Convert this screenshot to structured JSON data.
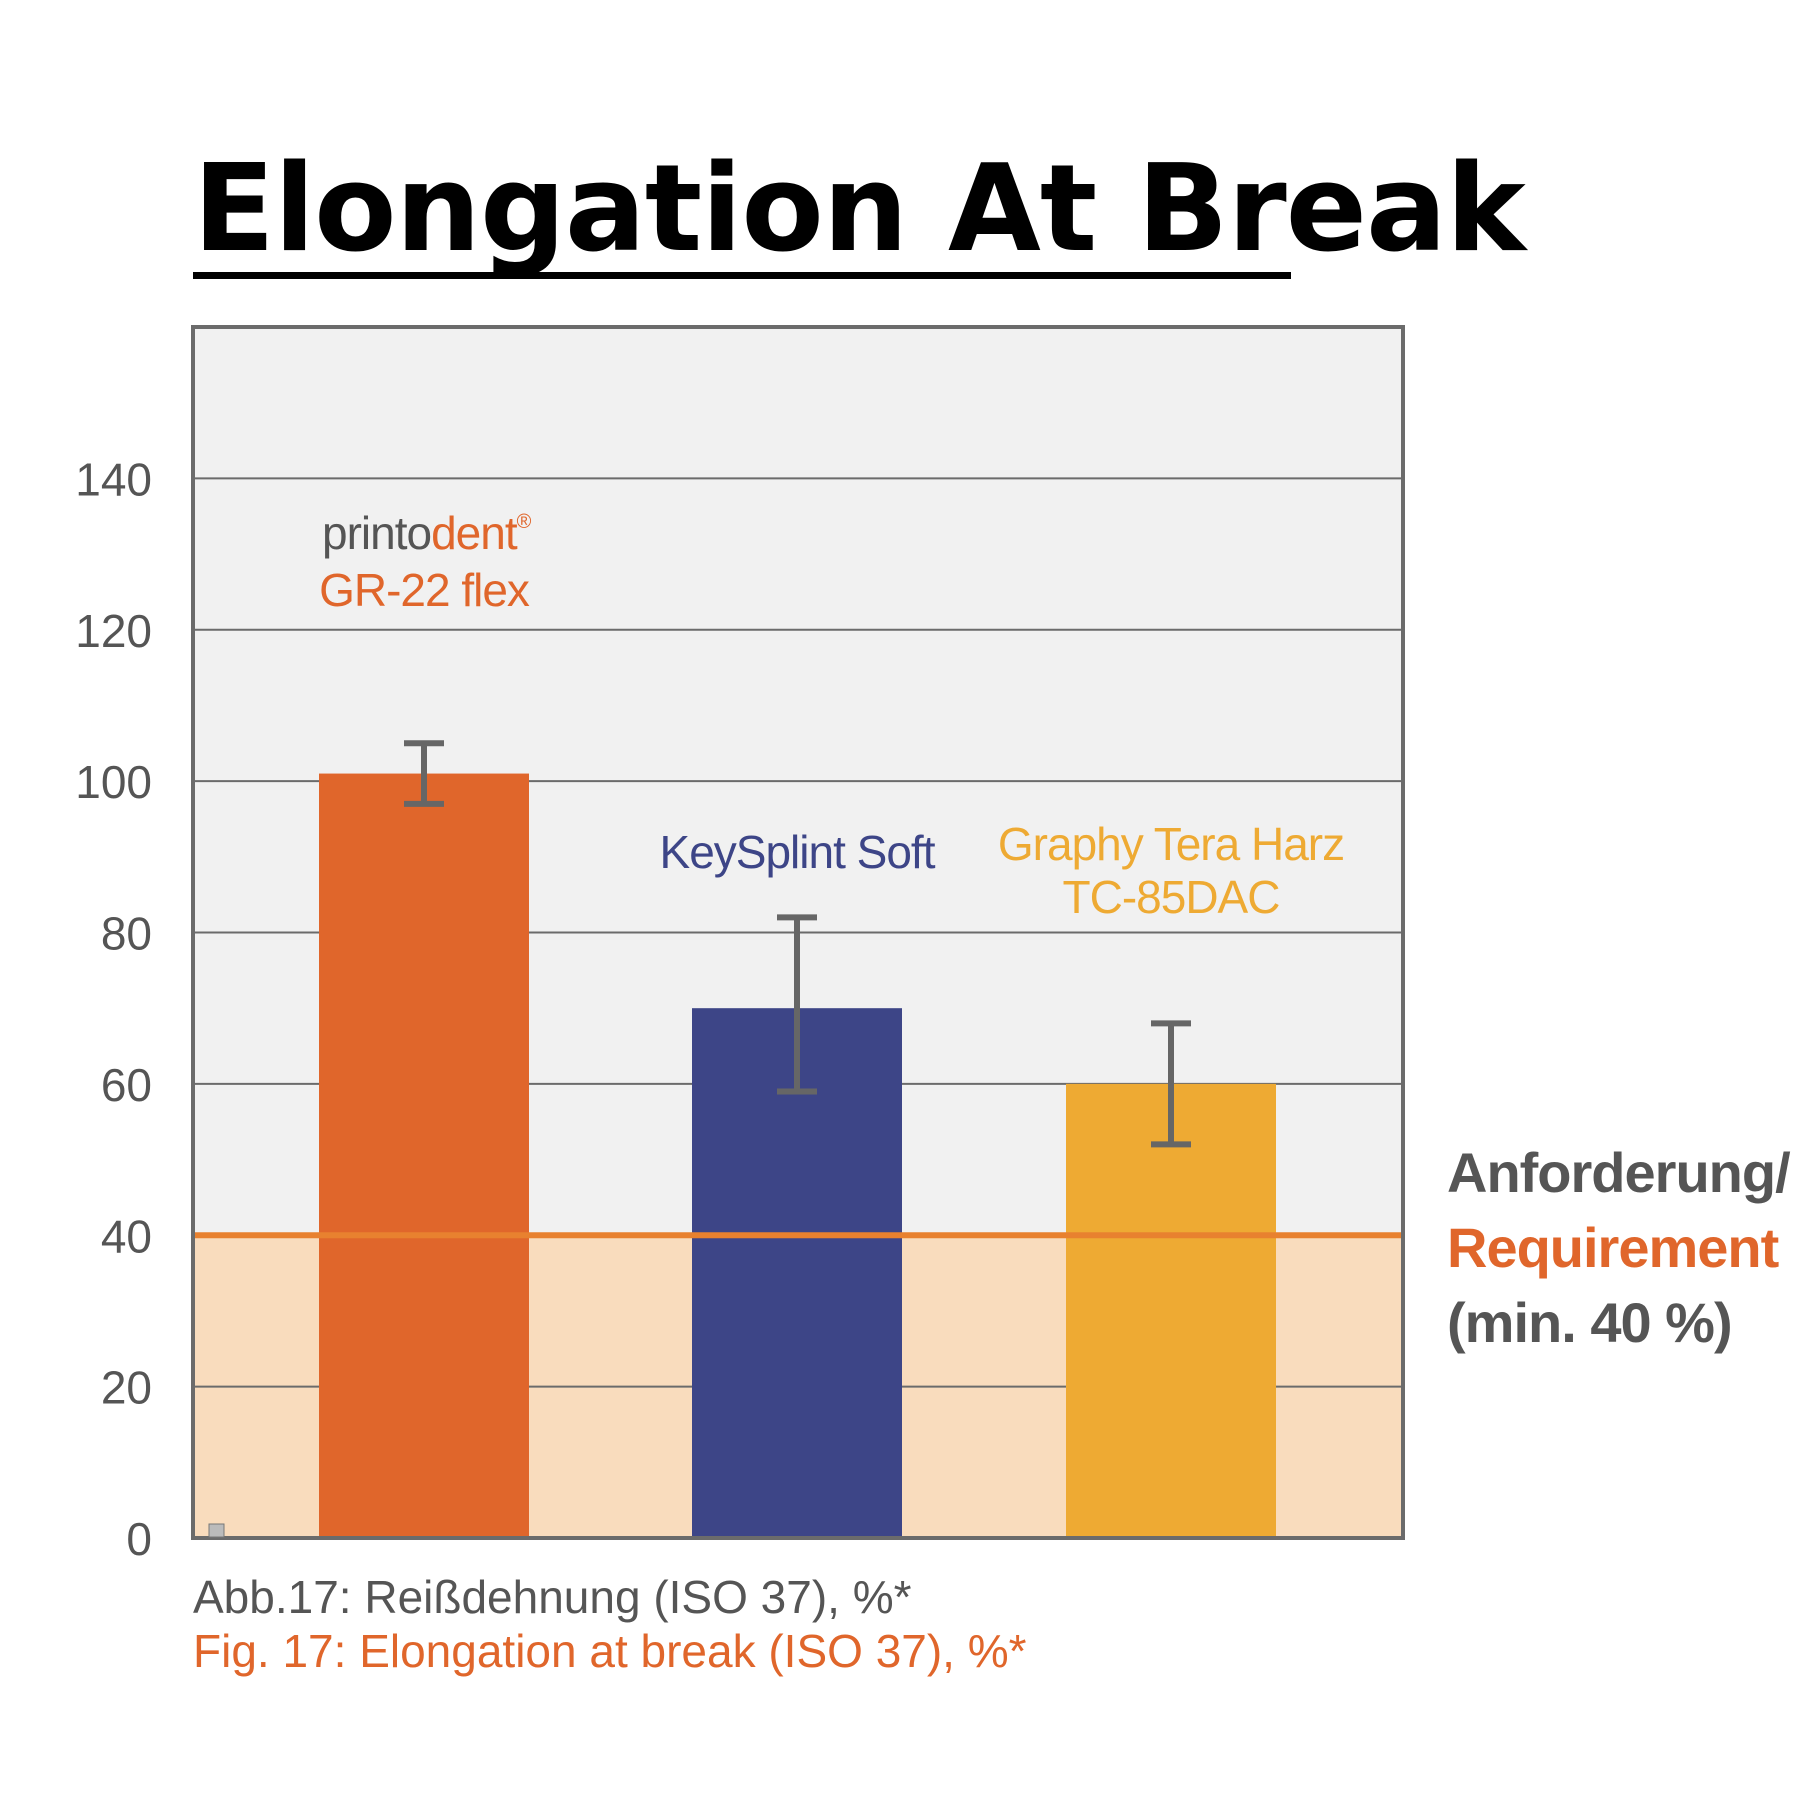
{
  "title": "Elongation At Break",
  "colors": {
    "plot_bg": "#f1f1f1",
    "grid": "#6b6b6b",
    "requirement_band": "#f9dcbd",
    "requirement_line": "#e8812f",
    "frame": "#6b6b6b",
    "tick_text": "#555555",
    "printodent_grey": "#555555",
    "accent_orange": "#e0662b"
  },
  "brand": {
    "part1": "printo",
    "part2": "dent",
    "mark": "®"
  },
  "requirement": {
    "line1": "Anforderung/",
    "line2": "Requirement",
    "line3": "(min. 40 %)",
    "value": 40
  },
  "caption": {
    "de": "Abb.17: Reißdehnung (ISO 37), %*",
    "en": "Fig. 17: Elongation at break (ISO 37), %*"
  },
  "chart_data": {
    "type": "bar",
    "title": "Elongation At Break",
    "xlabel": "",
    "ylabel": "",
    "ylim": [
      0,
      160
    ],
    "yticks": [
      0,
      20,
      40,
      60,
      80,
      100,
      120,
      140
    ],
    "grid": true,
    "categories": [
      "GR-22 flex",
      "KeySplint Soft",
      "Graphy Tera Harz TC-85DAC"
    ],
    "bars": [
      {
        "label_lines": [
          "GR-22 flex"
        ],
        "value": 101,
        "err_low": 97,
        "err_high": 105,
        "color": "#e0662b"
      },
      {
        "label_lines": [
          "KeySplint Soft"
        ],
        "value": 70,
        "err_low": 59,
        "err_high": 82,
        "color": "#3d4587"
      },
      {
        "label_lines": [
          "Graphy Tera Harz",
          "TC-85DAC"
        ],
        "value": 60,
        "err_low": 52,
        "err_high": 68,
        "color": "#eeaa33"
      }
    ],
    "label_colors": [
      "#e0662b",
      "#3d4587",
      "#eeaa33"
    ],
    "error_bar_color": "#666666"
  }
}
